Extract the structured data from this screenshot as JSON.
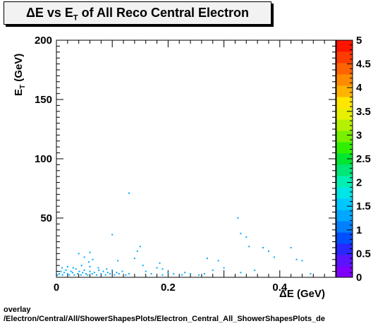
{
  "title": {
    "main": "ΔE vs E",
    "sub": "T",
    "rest": " of All Reco Central Electron"
  },
  "xlabel": "ΔE (GeV)",
  "ylabel": {
    "main": "E",
    "sub": "T",
    "rest": " (GeV)"
  },
  "footer": {
    "line1": "overlay",
    "line2": "/Electron/Central/All/ShowerShapesPlots/Electron_Central_All_ShowerShapesPlots_de"
  },
  "chart_data": {
    "type": "heatmap",
    "title": "ΔE vs E_T of All Reco Central Electron",
    "xlabel": "ΔE (GeV)",
    "ylabel": "E_T (GeV)",
    "xlim": [
      0,
      0.5
    ],
    "ylim": [
      0,
      200
    ],
    "x_ticks": [
      "0",
      "0.2",
      "0.4"
    ],
    "y_ticks": [
      "50",
      "100",
      "150",
      "200"
    ],
    "zlim": [
      0,
      5
    ],
    "z_ticks": [
      "0",
      "0.5",
      "1",
      "1.5",
      "2",
      "2.5",
      "3",
      "3.5",
      "4",
      "4.5",
      "5"
    ],
    "grid": false,
    "colorbar_colors": [
      "#7f00ff",
      "#5a14ff",
      "#2828ff",
      "#0050ff",
      "#0080ff",
      "#00a8ff",
      "#00c8ff",
      "#00e6e6",
      "#00f0b4",
      "#00e678",
      "#00e632",
      "#30f000",
      "#78f000",
      "#b4f000",
      "#e6f000",
      "#ffe600",
      "#ffb400",
      "#ff8c00",
      "#ff6400",
      "#ff3c00",
      "#ff1400"
    ],
    "points": [
      [
        0.002,
        2
      ],
      [
        0.005,
        3
      ],
      [
        0.008,
        5
      ],
      [
        0.011,
        2
      ],
      [
        0.014,
        4
      ],
      [
        0.017,
        6
      ],
      [
        0.02,
        3
      ],
      [
        0.023,
        2
      ],
      [
        0.026,
        5
      ],
      [
        0.029,
        4
      ],
      [
        0.032,
        2
      ],
      [
        0.035,
        7
      ],
      [
        0.038,
        3
      ],
      [
        0.041,
        5
      ],
      [
        0.044,
        2
      ],
      [
        0.047,
        4
      ],
      [
        0.05,
        6
      ],
      [
        0.053,
        3
      ],
      [
        0.056,
        2
      ],
      [
        0.06,
        5
      ],
      [
        0.064,
        3
      ],
      [
        0.068,
        4
      ],
      [
        0.072,
        2
      ],
      [
        0.076,
        6
      ],
      [
        0.08,
        3
      ],
      [
        0.084,
        5
      ],
      [
        0.088,
        2
      ],
      [
        0.092,
        4
      ],
      [
        0.096,
        3
      ],
      [
        0.1,
        6
      ],
      [
        0.104,
        2
      ],
      [
        0.108,
        4
      ],
      [
        0.112,
        3
      ],
      [
        0.118,
        5
      ],
      [
        0.124,
        2
      ],
      [
        0.13,
        3
      ],
      [
        0.01,
        8
      ],
      [
        0.02,
        9
      ],
      [
        0.03,
        8
      ],
      [
        0.045,
        10
      ],
      [
        0.06,
        9
      ],
      [
        0.075,
        8
      ],
      [
        0.04,
        20
      ],
      [
        0.05,
        17
      ],
      [
        0.06,
        21
      ],
      [
        0.058,
        13
      ],
      [
        0.065,
        15
      ],
      [
        0.09,
        7
      ],
      [
        0.1,
        36
      ],
      [
        0.11,
        14
      ],
      [
        0.13,
        71
      ],
      [
        0.14,
        16
      ],
      [
        0.145,
        22
      ],
      [
        0.15,
        26
      ],
      [
        0.155,
        10
      ],
      [
        0.16,
        5
      ],
      [
        0.17,
        3
      ],
      [
        0.18,
        8
      ],
      [
        0.19,
        2
      ],
      [
        0.2,
        4
      ],
      [
        0.21,
        3
      ],
      [
        0.225,
        2
      ],
      [
        0.185,
        12
      ],
      [
        0.19,
        7
      ],
      [
        0.23,
        4
      ],
      [
        0.24,
        3
      ],
      [
        0.255,
        2
      ],
      [
        0.265,
        3
      ],
      [
        0.28,
        6
      ],
      [
        0.27,
        16
      ],
      [
        0.29,
        14
      ],
      [
        0.3,
        8
      ],
      [
        0.325,
        50
      ],
      [
        0.33,
        37
      ],
      [
        0.34,
        34
      ],
      [
        0.345,
        26
      ],
      [
        0.33,
        4
      ],
      [
        0.355,
        6
      ],
      [
        0.37,
        25
      ],
      [
        0.38,
        22
      ],
      [
        0.39,
        17
      ],
      [
        0.42,
        25
      ],
      [
        0.43,
        15
      ],
      [
        0.44,
        14
      ],
      [
        0.455,
        3
      ]
    ]
  }
}
